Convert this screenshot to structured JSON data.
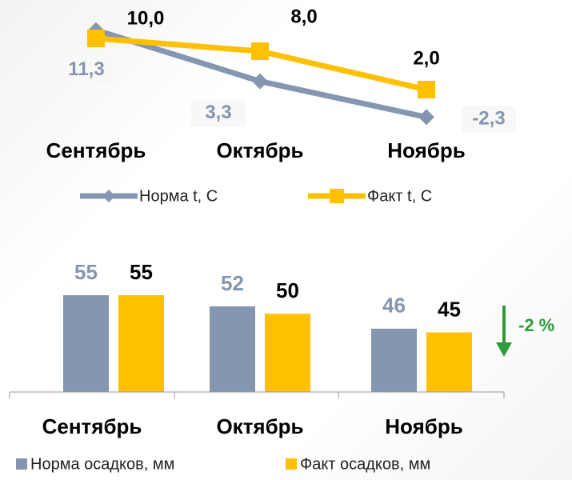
{
  "chart_data": [
    {
      "type": "line",
      "categories": [
        "Сентябрь",
        "Октябрь",
        "Ноябрь"
      ],
      "series": [
        {
          "name": "Норма t, C",
          "color": "#8496b0",
          "values": [
            11.3,
            3.3,
            -2.3
          ],
          "value_labels": [
            "11,3",
            "3,3",
            "-2,3"
          ]
        },
        {
          "name": "Факт t, C",
          "color": "#ffc000",
          "values": [
            10.0,
            8.0,
            2.0
          ],
          "value_labels": [
            "10,0",
            "8,0",
            "2,0"
          ]
        }
      ],
      "ylim": [
        -4,
        13
      ]
    },
    {
      "type": "bar",
      "categories": [
        "Сентябрь",
        "Октябрь",
        "Ноябрь"
      ],
      "series": [
        {
          "name": "Норма осадков, мм",
          "color": "#8496b0",
          "values": [
            55,
            52,
            46
          ]
        },
        {
          "name": "Факт осадков, мм",
          "color": "#ffc000",
          "values": [
            55,
            50,
            45
          ]
        }
      ],
      "ylim": [
        29,
        58
      ],
      "annotation": "-2 %"
    }
  ]
}
